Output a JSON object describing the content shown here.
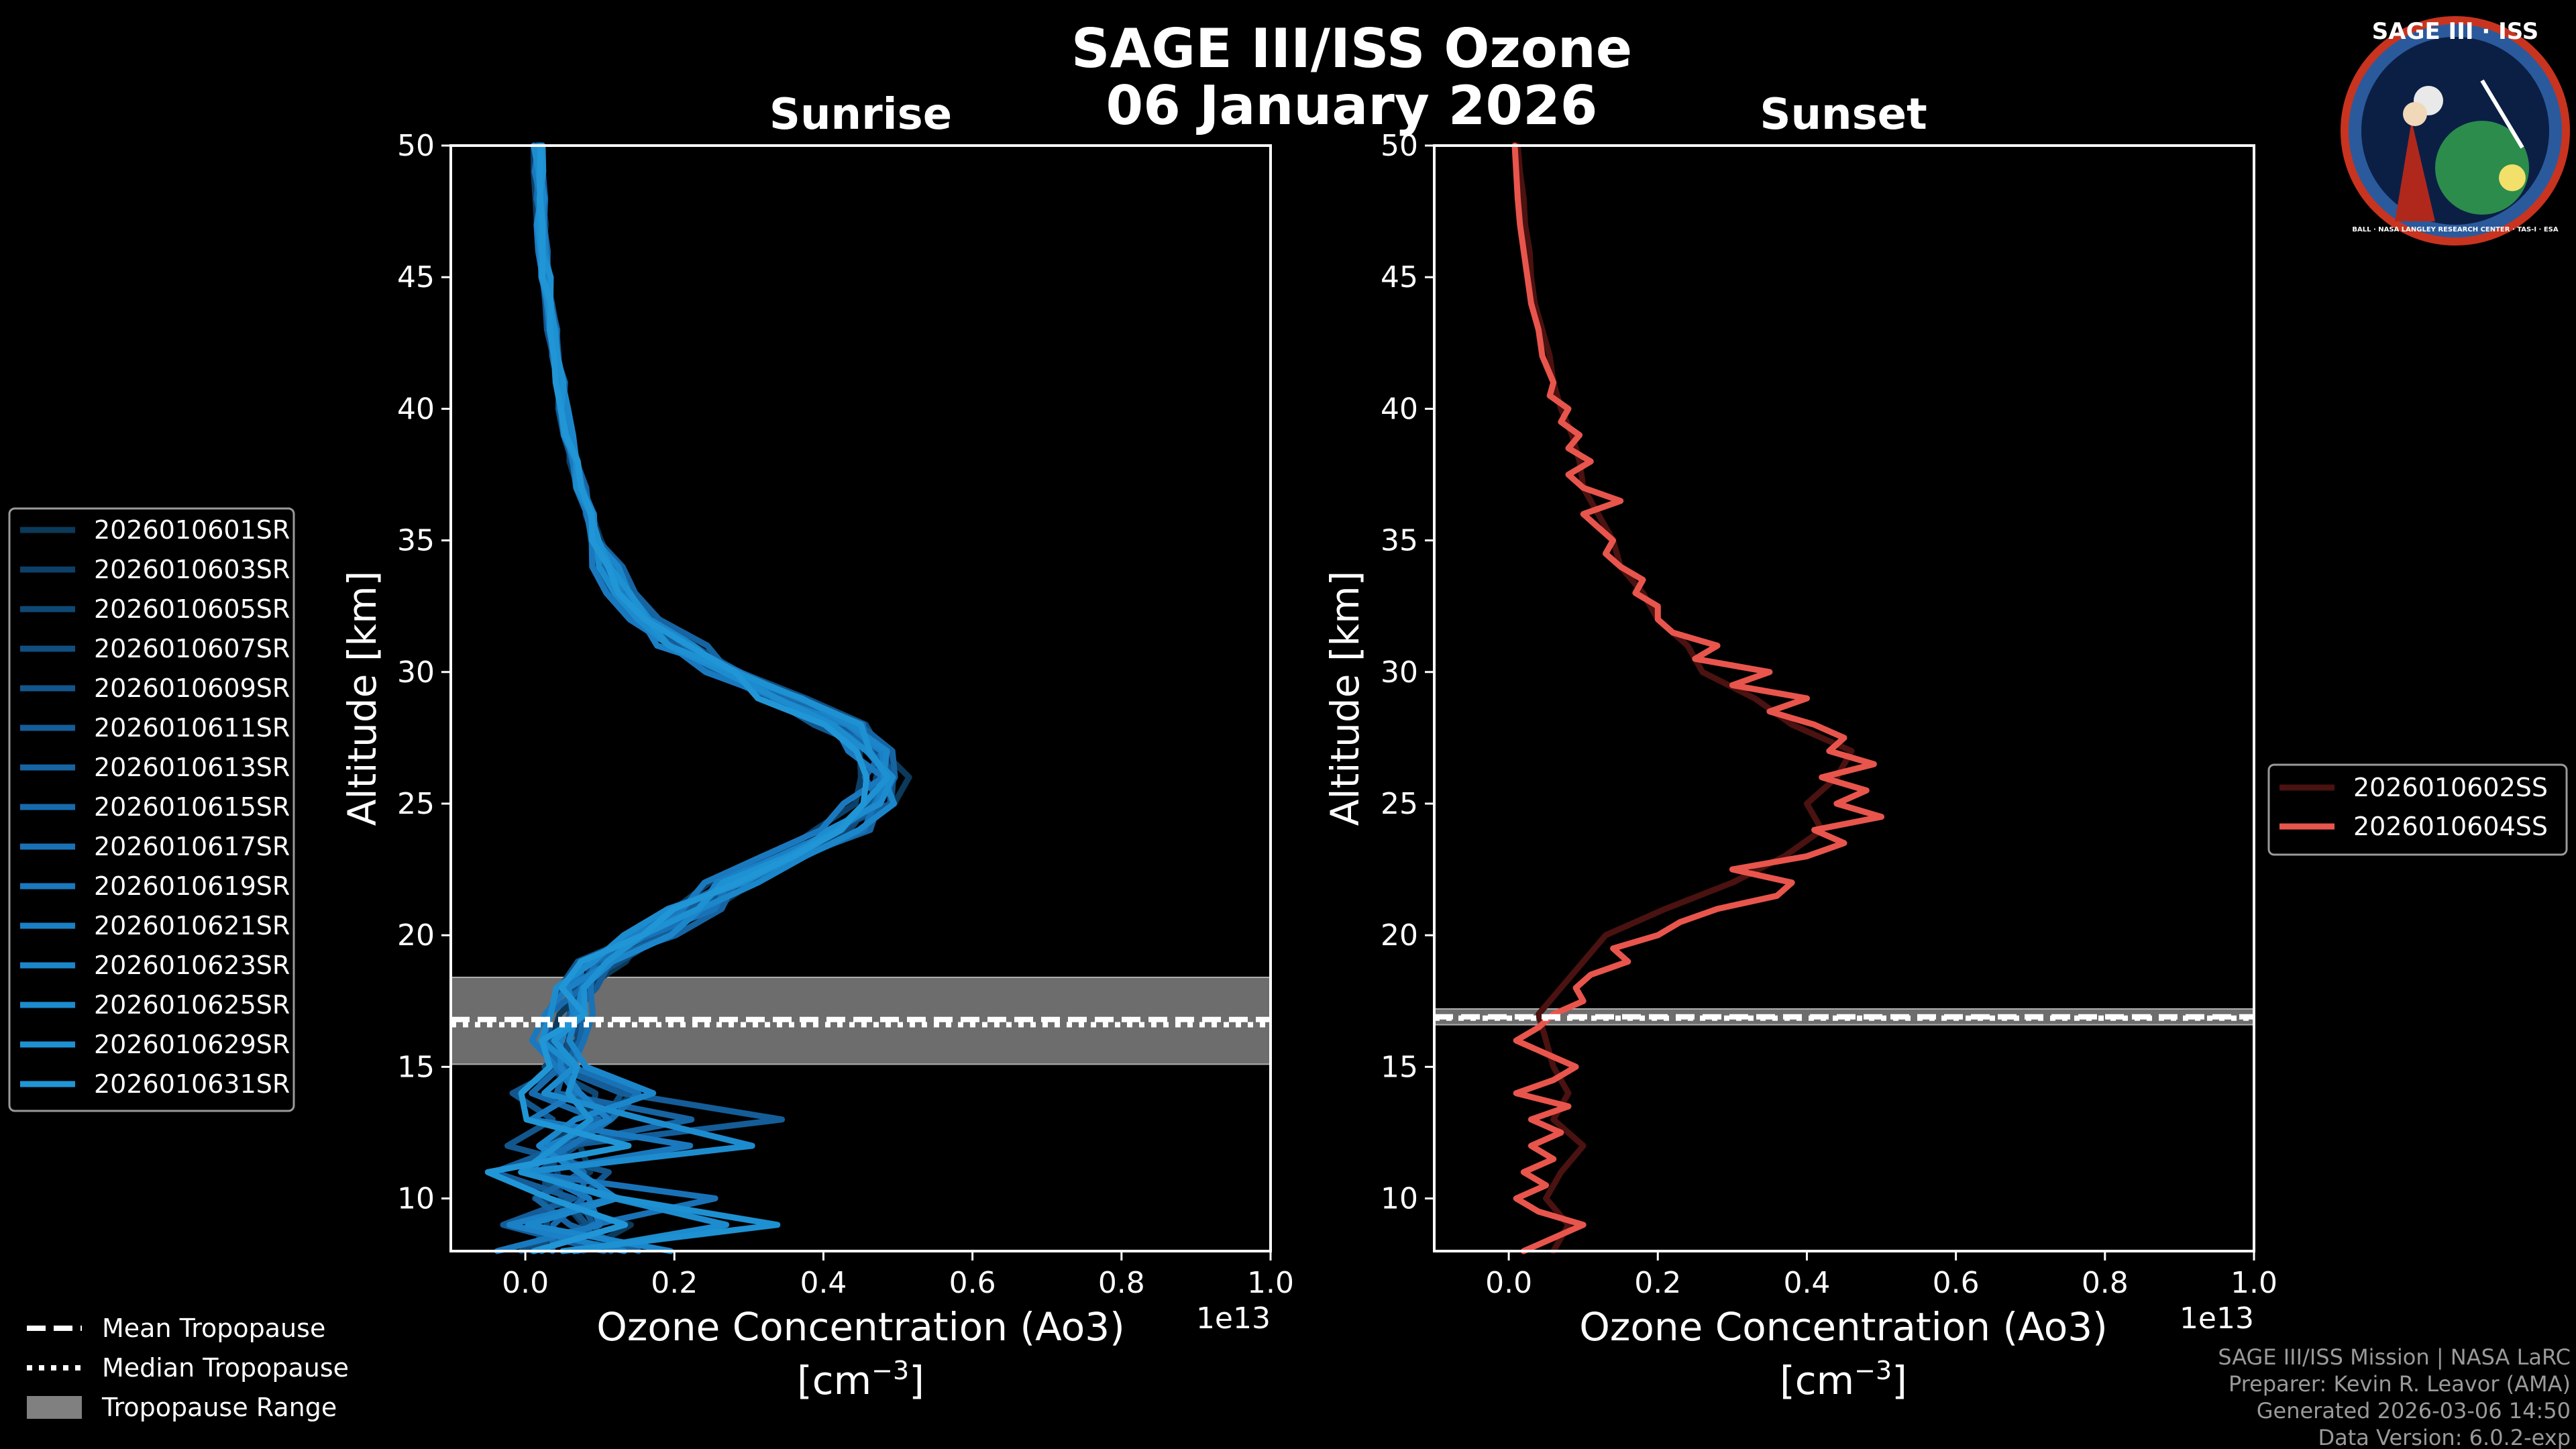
{
  "header": {
    "title_line1": "SAGE III/ISS Ozone",
    "title_line2": "06 January 2026"
  },
  "logo": {
    "text": "SAGE III · ISS",
    "ring_text": "BALL · NASA LANGLEY RESEARCH CENTER · TAS-I · ESA"
  },
  "colors": {
    "sunrise": "#1e90d2",
    "sunset": "#e8554c",
    "tropopause_band": "#808080",
    "axis": "#ffffff"
  },
  "chart_data": [
    {
      "type": "line",
      "title": "Sunrise",
      "xlabel": "Ozone Concentration (Ao3)",
      "xlabel_units": "[cm",
      "xlabel_exp": "−3",
      "xlabel_close": "]",
      "x_offset_label": "1e13",
      "ylabel": "Altitude [km]",
      "xlim": [
        -0.1,
        1.0
      ],
      "ylim": [
        8,
        50
      ],
      "xticks": [
        0.0,
        0.2,
        0.4,
        0.6,
        0.8,
        1.0
      ],
      "xtick_labels": [
        "0.0",
        "0.2",
        "0.4",
        "0.6",
        "0.8",
        "1.0"
      ],
      "yticks": [
        10,
        15,
        20,
        25,
        30,
        35,
        40,
        45,
        50
      ],
      "ytick_labels": [
        "10",
        "15",
        "20",
        "25",
        "30",
        "35",
        "40",
        "45",
        "50"
      ],
      "tropopause": {
        "mean": 16.8,
        "median": 16.6,
        "range": [
          15.1,
          18.4
        ]
      },
      "profile_template": [
        [
          8,
          0.06
        ],
        [
          9,
          0.05
        ],
        [
          10,
          0.07
        ],
        [
          11,
          0.04
        ],
        [
          12,
          0.06
        ],
        [
          13,
          0.05
        ],
        [
          14,
          0.07
        ],
        [
          15,
          0.05
        ],
        [
          16,
          0.05
        ],
        [
          17,
          0.06
        ],
        [
          18,
          0.07
        ],
        [
          19,
          0.1
        ],
        [
          20,
          0.16
        ],
        [
          21,
          0.22
        ],
        [
          22,
          0.28
        ],
        [
          23,
          0.35
        ],
        [
          24,
          0.42
        ],
        [
          25,
          0.47
        ],
        [
          26,
          0.48
        ],
        [
          27,
          0.47
        ],
        [
          28,
          0.42
        ],
        [
          29,
          0.34
        ],
        [
          30,
          0.27
        ],
        [
          31,
          0.2
        ],
        [
          32,
          0.16
        ],
        [
          33,
          0.13
        ],
        [
          34,
          0.11
        ],
        [
          35,
          0.095
        ],
        [
          36,
          0.085
        ],
        [
          37,
          0.075
        ],
        [
          38,
          0.066
        ],
        [
          39,
          0.058
        ],
        [
          40,
          0.051
        ],
        [
          41,
          0.045
        ],
        [
          42,
          0.04
        ],
        [
          43,
          0.035
        ],
        [
          44,
          0.031
        ],
        [
          45,
          0.028
        ],
        [
          46,
          0.025
        ],
        [
          47,
          0.022
        ],
        [
          48,
          0.02
        ],
        [
          49,
          0.018
        ],
        [
          50,
          0.017
        ]
      ],
      "series": [
        {
          "name": "2026010601SR",
          "color": "#0b3a5a",
          "shift": 0.01,
          "jitter": 1
        },
        {
          "name": "2026010603SR",
          "color": "#0d4068",
          "shift": -0.01,
          "jitter": 2
        },
        {
          "name": "2026010605SR",
          "color": "#0f4874",
          "shift": 0.0,
          "jitter": 3
        },
        {
          "name": "2026010607SR",
          "color": "#114f80",
          "shift": 0.015,
          "jitter": 4
        },
        {
          "name": "2026010609SR",
          "color": "#12568c",
          "shift": -0.015,
          "jitter": 5
        },
        {
          "name": "2026010611SR",
          "color": "#145d98",
          "shift": 0.005,
          "jitter": 6
        },
        {
          "name": "2026010613SR",
          "color": "#1664a2",
          "shift": 0.02,
          "jitter": 7
        },
        {
          "name": "2026010615SR",
          "color": "#176bac",
          "shift": -0.005,
          "jitter": 8
        },
        {
          "name": "2026010617SR",
          "color": "#1972b6",
          "shift": 0.01,
          "jitter": 9
        },
        {
          "name": "2026010619SR",
          "color": "#1a79be",
          "shift": -0.02,
          "jitter": 10
        },
        {
          "name": "2026010621SR",
          "color": "#1b80c5",
          "shift": 0.0,
          "jitter": 11
        },
        {
          "name": "2026010623SR",
          "color": "#1c86cb",
          "shift": 0.012,
          "jitter": 12
        },
        {
          "name": "2026010625SR",
          "color": "#1d8ccf",
          "shift": -0.008,
          "jitter": 13
        },
        {
          "name": "2026010629SR",
          "color": "#1e91d2",
          "shift": 0.006,
          "jitter": 14
        },
        {
          "name": "2026010631SR",
          "color": "#2196d6",
          "shift": -0.003,
          "jitter": 15
        }
      ]
    },
    {
      "type": "line",
      "title": "Sunset",
      "xlabel": "Ozone Concentration (Ao3)",
      "xlabel_units": "[cm",
      "xlabel_exp": "−3",
      "xlabel_close": "]",
      "x_offset_label": "1e13",
      "ylabel": "Altitude [km]",
      "xlim": [
        -0.1,
        1.0
      ],
      "ylim": [
        8,
        50
      ],
      "xticks": [
        0.0,
        0.2,
        0.4,
        0.6,
        0.8,
        1.0
      ],
      "xtick_labels": [
        "0.0",
        "0.2",
        "0.4",
        "0.6",
        "0.8",
        "1.0"
      ],
      "yticks": [
        10,
        15,
        20,
        25,
        30,
        35,
        40,
        45,
        50
      ],
      "ytick_labels": [
        "10",
        "15",
        "20",
        "25",
        "30",
        "35",
        "40",
        "45",
        "50"
      ],
      "tropopause": {
        "mean": 16.9,
        "median": 16.85,
        "range": [
          16.6,
          17.2
        ]
      },
      "series": [
        {
          "name": "2026010602SS",
          "color": "#4a1210",
          "points": [
            [
              8,
              0.06
            ],
            [
              9,
              0.08
            ],
            [
              10,
              0.05
            ],
            [
              11,
              0.07
            ],
            [
              12,
              0.1
            ],
            [
              13,
              0.06
            ],
            [
              14,
              0.08
            ],
            [
              15,
              0.06
            ],
            [
              16,
              0.05
            ],
            [
              17,
              0.04
            ],
            [
              18,
              0.07
            ],
            [
              19,
              0.1
            ],
            [
              20,
              0.13
            ],
            [
              21,
              0.21
            ],
            [
              22,
              0.3
            ],
            [
              23,
              0.37
            ],
            [
              24,
              0.42
            ],
            [
              25,
              0.4
            ],
            [
              26,
              0.44
            ],
            [
              27,
              0.46
            ],
            [
              28,
              0.38
            ],
            [
              29,
              0.33
            ],
            [
              30,
              0.26
            ],
            [
              31,
              0.24
            ],
            [
              32,
              0.2
            ],
            [
              33,
              0.18
            ],
            [
              34,
              0.15
            ],
            [
              35,
              0.14
            ],
            [
              36,
              0.12
            ],
            [
              37,
              0.1
            ],
            [
              38,
              0.095
            ],
            [
              39,
              0.085
            ],
            [
              40,
              0.07
            ],
            [
              41,
              0.06
            ],
            [
              42,
              0.055
            ],
            [
              43,
              0.045
            ],
            [
              44,
              0.035
            ],
            [
              45,
              0.03
            ],
            [
              46,
              0.028
            ],
            [
              47,
              0.022
            ],
            [
              48,
              0.02
            ],
            [
              49,
              0.015
            ],
            [
              50,
              0.012
            ]
          ]
        },
        {
          "name": "2026010604SS",
          "color": "#e8554c",
          "points": [
            [
              8,
              0.02
            ],
            [
              8.5,
              0.06
            ],
            [
              9,
              0.1
            ],
            [
              9.5,
              0.04
            ],
            [
              10,
              0.01
            ],
            [
              10.5,
              0.05
            ],
            [
              11,
              0.02
            ],
            [
              11.5,
              0.06
            ],
            [
              12,
              0.03
            ],
            [
              12.5,
              0.07
            ],
            [
              13,
              0.03
            ],
            [
              13.5,
              0.08
            ],
            [
              14,
              0.01
            ],
            [
              14.5,
              0.06
            ],
            [
              15,
              0.09
            ],
            [
              15.5,
              0.05
            ],
            [
              16,
              0.01
            ],
            [
              16.5,
              0.04
            ],
            [
              17,
              0.06
            ],
            [
              17.5,
              0.1
            ],
            [
              18,
              0.09
            ],
            [
              18.5,
              0.11
            ],
            [
              19,
              0.16
            ],
            [
              19.5,
              0.14
            ],
            [
              20,
              0.2
            ],
            [
              20.5,
              0.23
            ],
            [
              21,
              0.28
            ],
            [
              21.5,
              0.36
            ],
            [
              22,
              0.38
            ],
            [
              22.5,
              0.3
            ],
            [
              23,
              0.4
            ],
            [
              23.5,
              0.45
            ],
            [
              24,
              0.41
            ],
            [
              24.5,
              0.5
            ],
            [
              25,
              0.44
            ],
            [
              25.5,
              0.48
            ],
            [
              26,
              0.42
            ],
            [
              26.5,
              0.49
            ],
            [
              27,
              0.43
            ],
            [
              27.5,
              0.45
            ],
            [
              28,
              0.41
            ],
            [
              28.5,
              0.35
            ],
            [
              29,
              0.4
            ],
            [
              29.5,
              0.3
            ],
            [
              30,
              0.35
            ],
            [
              30.5,
              0.25
            ],
            [
              31,
              0.28
            ],
            [
              31.5,
              0.22
            ],
            [
              32,
              0.2
            ],
            [
              32.5,
              0.2
            ],
            [
              33,
              0.17
            ],
            [
              33.5,
              0.18
            ],
            [
              34,
              0.15
            ],
            [
              34.5,
              0.13
            ],
            [
              35,
              0.14
            ],
            [
              35.5,
              0.12
            ],
            [
              36,
              0.1
            ],
            [
              36.5,
              0.15
            ],
            [
              37,
              0.1
            ],
            [
              37.5,
              0.08
            ],
            [
              38,
              0.11
            ],
            [
              38.5,
              0.08
            ],
            [
              39,
              0.095
            ],
            [
              39.5,
              0.07
            ],
            [
              40,
              0.08
            ],
            [
              40.5,
              0.055
            ],
            [
              41,
              0.06
            ],
            [
              42,
              0.045
            ],
            [
              43,
              0.04
            ],
            [
              44,
              0.03
            ],
            [
              45,
              0.025
            ],
            [
              46,
              0.02
            ],
            [
              47,
              0.015
            ],
            [
              48,
              0.012
            ],
            [
              49,
              0.01
            ],
            [
              50,
              0.008
            ]
          ]
        }
      ]
    }
  ],
  "tropopause_legend": [
    {
      "label": "Mean Tropopause",
      "style": "dashed"
    },
    {
      "label": "Median Tropopause",
      "style": "dotted"
    },
    {
      "label": "Tropopause Range",
      "style": "patch"
    }
  ],
  "credits": [
    "SAGE III/ISS Mission | NASA LaRC",
    "Preparer: Kevin R. Leavor (AMA)",
    "Generated 2026-03-06 14:50",
    "Data Version: 6.0.2-exp"
  ]
}
